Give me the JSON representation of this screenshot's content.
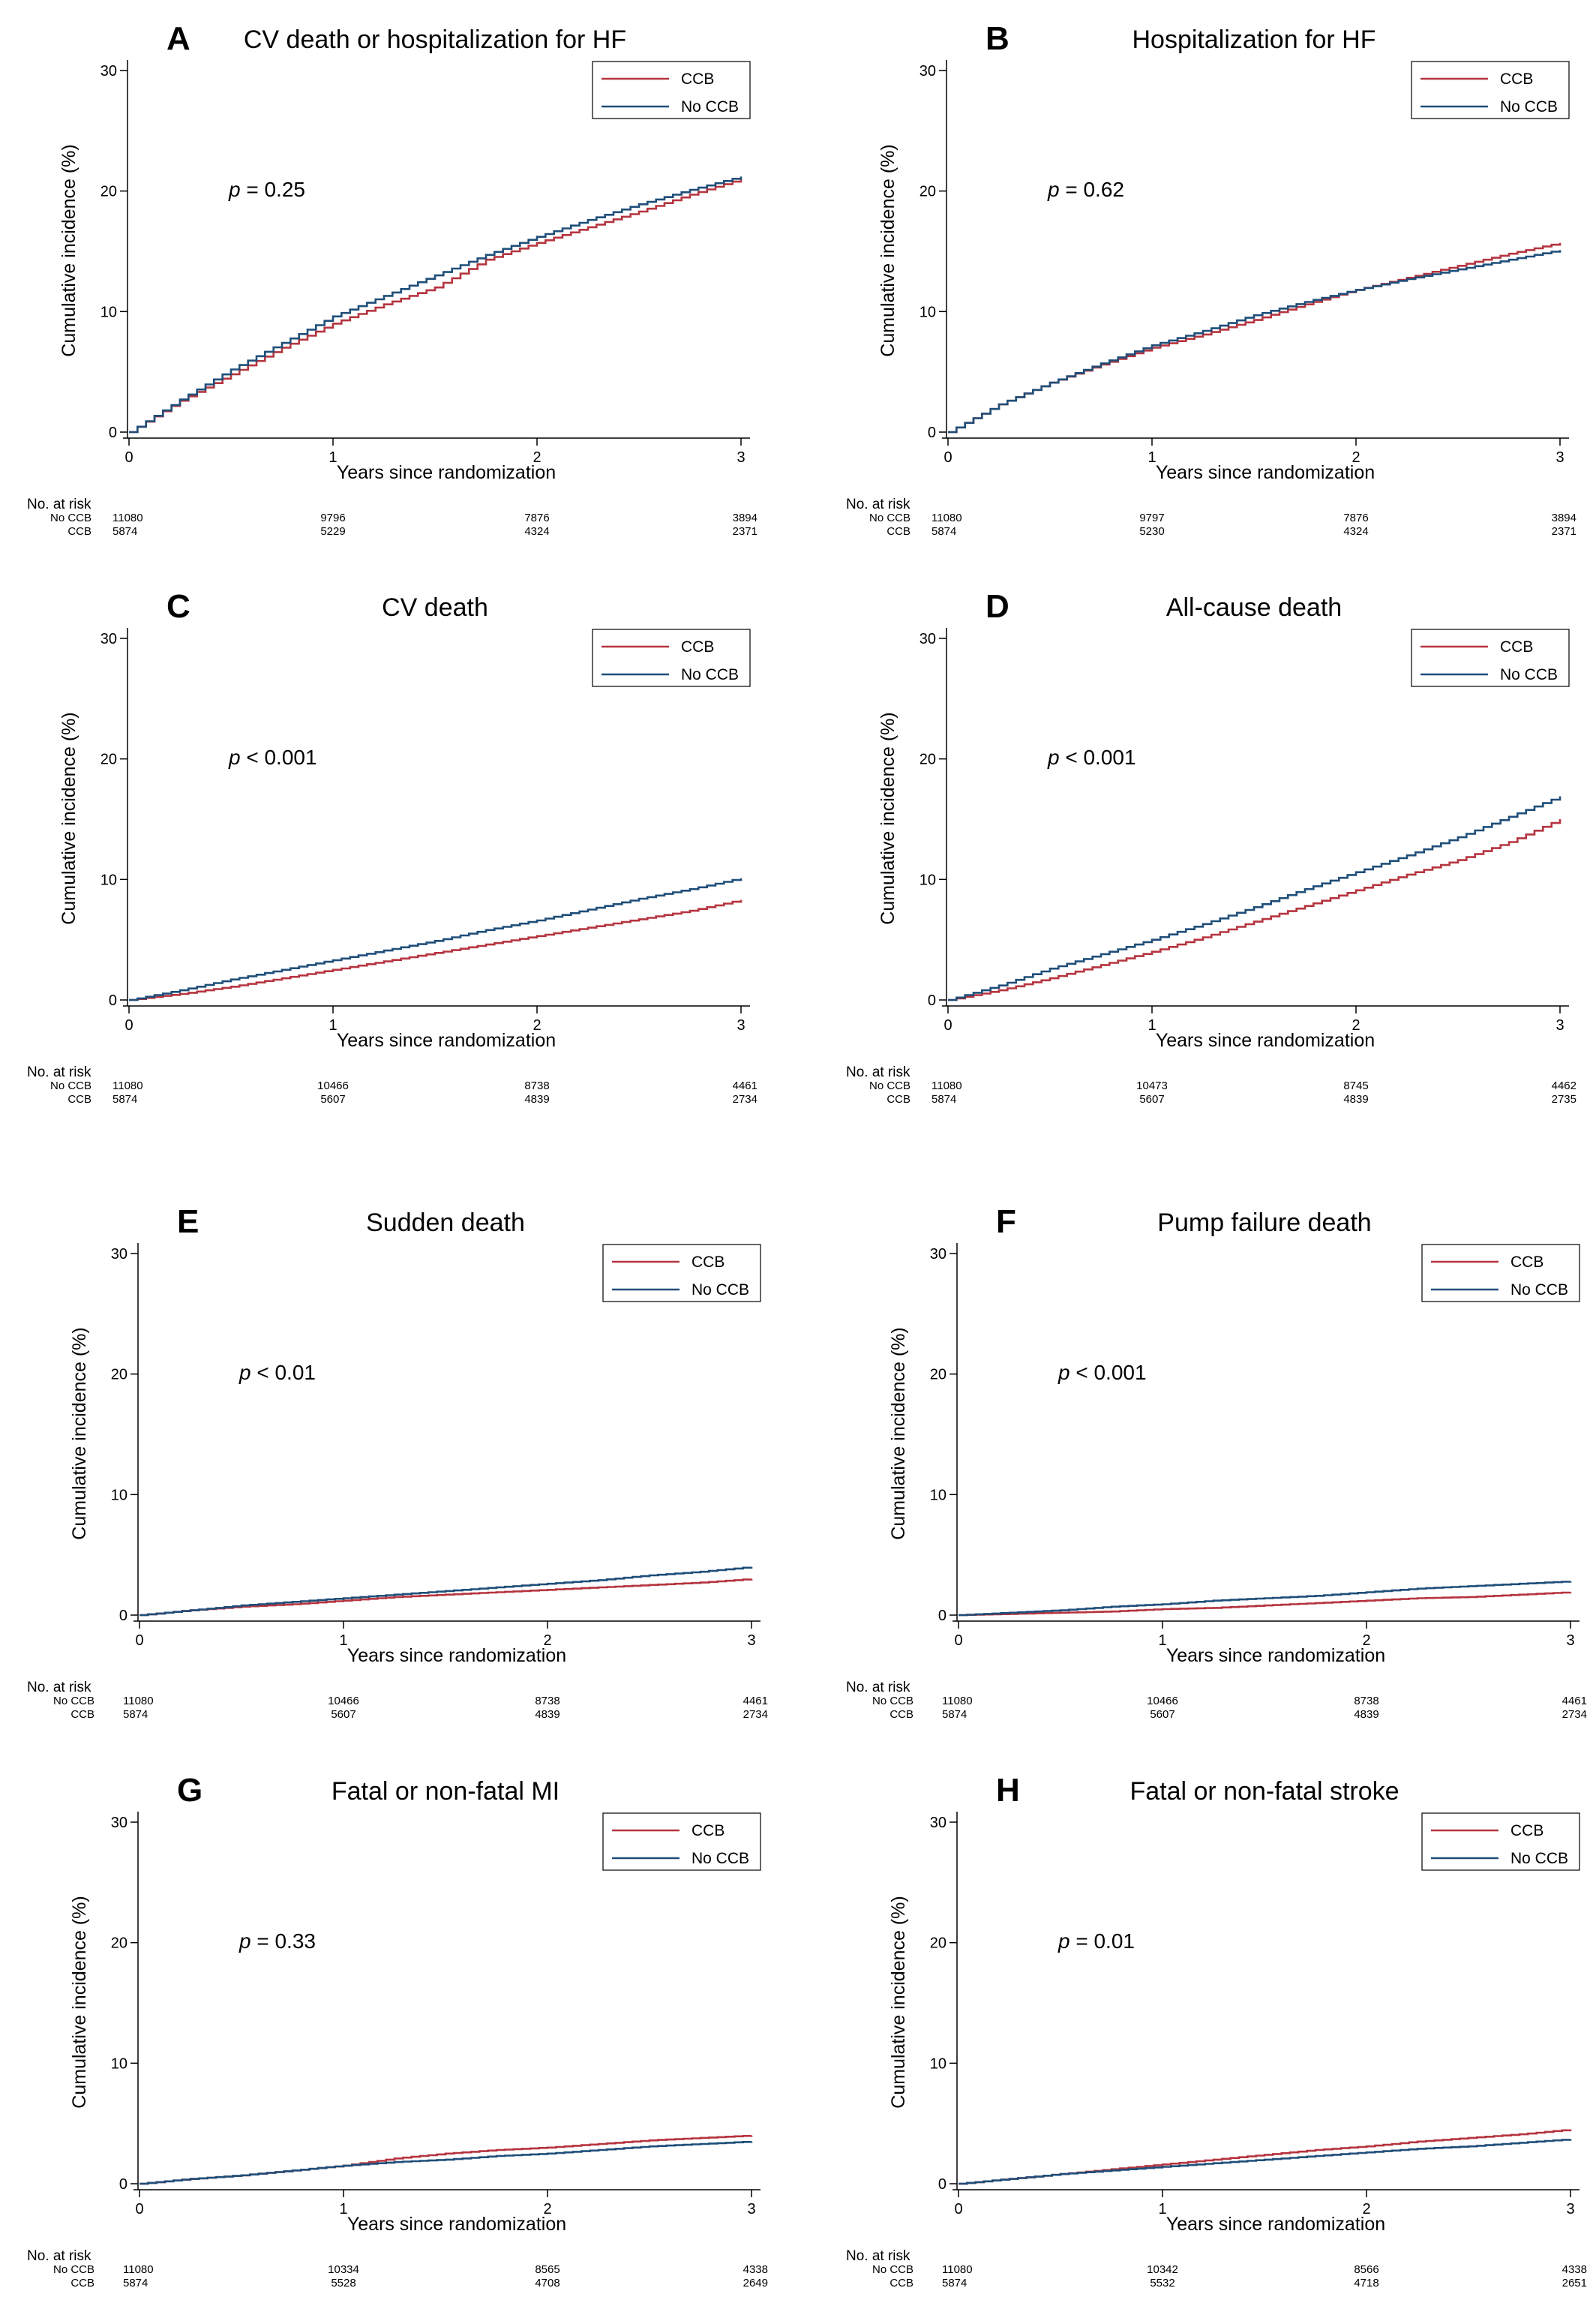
{
  "chart_data": [
    {
      "type": "line",
      "letter": "A",
      "title": "CV death or hospitalization for HF",
      "xlabel": "Years since randomization",
      "ylabel": "Cumulative incidence (%)",
      "xlim": [
        0,
        3
      ],
      "ylim": [
        0,
        30
      ],
      "xticks": [
        0,
        1,
        2,
        3
      ],
      "yticks": [
        0,
        10,
        20,
        30
      ],
      "legend_position": "top-right",
      "pvalue": {
        "label": "p",
        "text": " = 0.25"
      },
      "series": [
        {
          "name": "CCB",
          "color": "#b5343f",
          "x": [
            0,
            0.25,
            0.5,
            0.75,
            1.0,
            1.25,
            1.5,
            1.75,
            2.0,
            2.25,
            2.5,
            2.75,
            3.0
          ],
          "values": [
            0,
            2.6,
            4.8,
            7.0,
            9.0,
            10.6,
            12.0,
            14.3,
            15.7,
            17.0,
            18.3,
            19.7,
            21.0
          ]
        },
        {
          "name": "No CCB",
          "color": "#1f4e79",
          "x": [
            0,
            0.25,
            0.5,
            0.75,
            1.0,
            1.25,
            1.5,
            1.75,
            2.0,
            2.25,
            2.5,
            2.75,
            3.0
          ],
          "values": [
            0,
            2.7,
            5.2,
            7.4,
            9.6,
            11.3,
            13.0,
            14.7,
            16.2,
            17.6,
            18.9,
            20.1,
            21.2
          ]
        }
      ],
      "at_risk": {
        "header": "No. at risk",
        "x": [
          0,
          1,
          2,
          3
        ],
        "rows": [
          {
            "label": "No CCB",
            "values": [
              "11080",
              "9796",
              "7876",
              "3894"
            ]
          },
          {
            "label": "CCB",
            "values": [
              "5874",
              "5229",
              "4324",
              "2371"
            ]
          }
        ]
      }
    },
    {
      "type": "line",
      "letter": "B",
      "title": "Hospitalization for HF",
      "xlabel": "Years since randomization",
      "ylabel": "Cumulative incidence (%)",
      "xlim": [
        0,
        3
      ],
      "ylim": [
        0,
        30
      ],
      "xticks": [
        0,
        1,
        2,
        3
      ],
      "yticks": [
        0,
        10,
        20,
        30
      ],
      "legend_position": "top-right",
      "pvalue": {
        "label": "p",
        "text": " = 0.62"
      },
      "series": [
        {
          "name": "CCB",
          "color": "#b5343f",
          "x": [
            0,
            0.25,
            0.5,
            0.75,
            1.0,
            1.25,
            1.5,
            1.75,
            2.0,
            2.25,
            2.5,
            2.75,
            3.0
          ],
          "values": [
            0,
            2.3,
            4.1,
            5.6,
            7.0,
            8.1,
            9.3,
            10.6,
            11.8,
            12.8,
            13.8,
            14.8,
            15.7
          ]
        },
        {
          "name": "No CCB",
          "color": "#1f4e79",
          "x": [
            0,
            0.25,
            0.5,
            0.75,
            1.0,
            1.25,
            1.5,
            1.75,
            2.0,
            2.25,
            2.5,
            2.75,
            3.0
          ],
          "values": [
            0,
            2.3,
            4.1,
            5.7,
            7.2,
            8.4,
            9.7,
            10.8,
            11.8,
            12.7,
            13.5,
            14.3,
            15.1
          ]
        }
      ],
      "at_risk": {
        "header": "No. at risk",
        "x": [
          0,
          1,
          2,
          3
        ],
        "rows": [
          {
            "label": "No CCB",
            "values": [
              "11080",
              "9797",
              "7876",
              "3894"
            ]
          },
          {
            "label": "CCB",
            "values": [
              "5874",
              "5230",
              "4324",
              "2371"
            ]
          }
        ]
      }
    },
    {
      "type": "line",
      "letter": "C",
      "title": "CV death",
      "xlabel": "Years since randomization",
      "ylabel": "Cumulative incidence (%)",
      "xlim": [
        0,
        3
      ],
      "ylim": [
        0,
        30
      ],
      "xticks": [
        0,
        1,
        2,
        3
      ],
      "yticks": [
        0,
        10,
        20,
        30
      ],
      "legend_position": "top-right",
      "pvalue": {
        "label": "p",
        "text": " < 0.001"
      },
      "series": [
        {
          "name": "CCB",
          "color": "#b5343f",
          "x": [
            0,
            0.25,
            0.5,
            0.75,
            1.0,
            1.25,
            1.5,
            1.75,
            2.0,
            2.25,
            2.5,
            2.75,
            3.0
          ],
          "values": [
            0,
            0.5,
            1.1,
            1.8,
            2.5,
            3.2,
            3.9,
            4.6,
            5.3,
            6.0,
            6.7,
            7.4,
            8.3
          ]
        },
        {
          "name": "No CCB",
          "color": "#1f4e79",
          "x": [
            0,
            0.25,
            0.5,
            0.75,
            1.0,
            1.25,
            1.5,
            1.75,
            2.0,
            2.25,
            2.5,
            2.75,
            3.0
          ],
          "values": [
            0,
            0.8,
            1.7,
            2.5,
            3.3,
            4.1,
            4.9,
            5.8,
            6.6,
            7.5,
            8.4,
            9.2,
            10.1
          ]
        }
      ],
      "at_risk": {
        "header": "No. at risk",
        "x": [
          0,
          1,
          2,
          3
        ],
        "rows": [
          {
            "label": "No CCB",
            "values": [
              "11080",
              "10466",
              "8738",
              "4461"
            ]
          },
          {
            "label": "CCB",
            "values": [
              "5874",
              "5607",
              "4839",
              "2734"
            ]
          }
        ]
      }
    },
    {
      "type": "line",
      "letter": "D",
      "title": "All-cause death",
      "xlabel": "Years since randomization",
      "ylabel": "Cumulative incidence (%)",
      "xlim": [
        0,
        3
      ],
      "ylim": [
        0,
        30
      ],
      "xticks": [
        0,
        1,
        2,
        3
      ],
      "yticks": [
        0,
        10,
        20,
        30
      ],
      "legend_position": "top-right",
      "pvalue": {
        "label": "p",
        "text": " < 0.001"
      },
      "series": [
        {
          "name": "CCB",
          "color": "#b5343f",
          "x": [
            0,
            0.25,
            0.5,
            0.75,
            1.0,
            1.25,
            1.5,
            1.75,
            2.0,
            2.25,
            2.5,
            2.75,
            3.0
          ],
          "values": [
            0,
            0.8,
            1.8,
            2.9,
            4.0,
            5.2,
            6.5,
            7.8,
            9.1,
            10.4,
            11.6,
            13.1,
            15.0
          ]
        },
        {
          "name": "No CCB",
          "color": "#1f4e79",
          "x": [
            0,
            0.25,
            0.5,
            0.75,
            1.0,
            1.25,
            1.5,
            1.75,
            2.0,
            2.25,
            2.5,
            2.75,
            3.0
          ],
          "values": [
            0,
            1.2,
            2.6,
            3.8,
            5.0,
            6.3,
            7.7,
            9.2,
            10.6,
            12.0,
            13.5,
            15.2,
            16.9
          ]
        }
      ],
      "at_risk": {
        "header": "No. at risk",
        "x": [
          0,
          1,
          2,
          3
        ],
        "rows": [
          {
            "label": "No CCB",
            "values": [
              "11080",
              "10473",
              "8745",
              "4462"
            ]
          },
          {
            "label": "CCB",
            "values": [
              "5874",
              "5607",
              "4839",
              "2735"
            ]
          }
        ]
      }
    },
    {
      "type": "line",
      "letter": "E",
      "title": "Sudden death",
      "xlabel": "Years since randomization",
      "ylabel": "Cumulative incidence (%)",
      "xlim": [
        0,
        3
      ],
      "ylim": [
        0,
        30
      ],
      "xticks": [
        0,
        1,
        2,
        3
      ],
      "yticks": [
        0,
        10,
        20,
        30
      ],
      "legend_position": "top-right",
      "pvalue": {
        "label": "p",
        "text": " < 0.01"
      },
      "series": [
        {
          "name": "CCB",
          "color": "#b5343f",
          "x": [
            0,
            0.25,
            0.5,
            0.75,
            1.0,
            1.25,
            1.5,
            1.75,
            2.0,
            2.25,
            2.5,
            2.75,
            3.0
          ],
          "values": [
            0,
            0.4,
            0.7,
            0.9,
            1.2,
            1.5,
            1.7,
            1.9,
            2.1,
            2.3,
            2.5,
            2.7,
            3.0
          ]
        },
        {
          "name": "No CCB",
          "color": "#1f4e79",
          "x": [
            0,
            0.25,
            0.5,
            0.75,
            1.0,
            1.25,
            1.5,
            1.75,
            2.0,
            2.25,
            2.5,
            2.75,
            3.0
          ],
          "values": [
            0,
            0.4,
            0.8,
            1.1,
            1.4,
            1.7,
            2.0,
            2.3,
            2.6,
            2.9,
            3.3,
            3.6,
            4.0
          ]
        }
      ],
      "at_risk": {
        "header": "No. at risk",
        "x": [
          0,
          1,
          2,
          3
        ],
        "rows": [
          {
            "label": "No CCB",
            "values": [
              "11080",
              "10466",
              "8738",
              "4461"
            ]
          },
          {
            "label": "CCB",
            "values": [
              "5874",
              "5607",
              "4839",
              "2734"
            ]
          }
        ]
      }
    },
    {
      "type": "line",
      "letter": "F",
      "title": "Pump failure death",
      "xlabel": "Years since randomization",
      "ylabel": "Cumulative incidence (%)",
      "xlim": [
        0,
        3
      ],
      "ylim": [
        0,
        30
      ],
      "xticks": [
        0,
        1,
        2,
        3
      ],
      "yticks": [
        0,
        10,
        20,
        30
      ],
      "legend_position": "top-right",
      "pvalue": {
        "label": "p",
        "text": " < 0.001"
      },
      "series": [
        {
          "name": "CCB",
          "color": "#b5343f",
          "x": [
            0,
            0.25,
            0.5,
            0.75,
            1.0,
            1.25,
            1.5,
            1.75,
            2.0,
            2.25,
            2.5,
            2.75,
            3.0
          ],
          "values": [
            0,
            0.1,
            0.2,
            0.3,
            0.5,
            0.6,
            0.8,
            1.0,
            1.2,
            1.4,
            1.5,
            1.7,
            1.9
          ]
        },
        {
          "name": "No CCB",
          "color": "#1f4e79",
          "x": [
            0,
            0.25,
            0.5,
            0.75,
            1.0,
            1.25,
            1.5,
            1.75,
            2.0,
            2.25,
            2.5,
            2.75,
            3.0
          ],
          "values": [
            0,
            0.2,
            0.4,
            0.7,
            0.9,
            1.2,
            1.4,
            1.6,
            1.9,
            2.2,
            2.4,
            2.6,
            2.8
          ]
        }
      ],
      "at_risk": {
        "header": "No. at risk",
        "x": [
          0,
          1,
          2,
          3
        ],
        "rows": [
          {
            "label": "No CCB",
            "values": [
              "11080",
              "10466",
              "8738",
              "4461"
            ]
          },
          {
            "label": "CCB",
            "values": [
              "5874",
              "5607",
              "4839",
              "2734"
            ]
          }
        ]
      }
    },
    {
      "type": "line",
      "letter": "G",
      "title": "Fatal or non-fatal MI",
      "xlabel": "Years since randomization",
      "ylabel": "Cumulative incidence (%)",
      "xlim": [
        0,
        3
      ],
      "ylim": [
        0,
        30
      ],
      "xticks": [
        0,
        1,
        2,
        3
      ],
      "yticks": [
        0,
        10,
        20,
        30
      ],
      "legend_position": "top-right",
      "pvalue": {
        "label": "p",
        "text": " = 0.33"
      },
      "series": [
        {
          "name": "CCB",
          "color": "#b5343f",
          "x": [
            0,
            0.25,
            0.5,
            0.75,
            1.0,
            1.25,
            1.5,
            1.75,
            2.0,
            2.25,
            2.5,
            2.75,
            3.0
          ],
          "values": [
            0,
            0.4,
            0.7,
            1.1,
            1.5,
            2.1,
            2.5,
            2.8,
            3.0,
            3.3,
            3.6,
            3.8,
            4.0
          ]
        },
        {
          "name": "No CCB",
          "color": "#1f4e79",
          "x": [
            0,
            0.25,
            0.5,
            0.75,
            1.0,
            1.25,
            1.5,
            1.75,
            2.0,
            2.25,
            2.5,
            2.75,
            3.0
          ],
          "values": [
            0,
            0.4,
            0.7,
            1.1,
            1.5,
            1.8,
            2.0,
            2.3,
            2.5,
            2.8,
            3.1,
            3.3,
            3.5
          ]
        }
      ],
      "at_risk": {
        "header": "No. at risk",
        "x": [
          0,
          1,
          2,
          3
        ],
        "rows": [
          {
            "label": "No CCB",
            "values": [
              "11080",
              "10334",
              "8565",
              "4338"
            ]
          },
          {
            "label": "CCB",
            "values": [
              "5874",
              "5528",
              "4708",
              "2649"
            ]
          }
        ]
      }
    },
    {
      "type": "line",
      "letter": "H",
      "title": "Fatal or non-fatal stroke",
      "xlabel": "Years since randomization",
      "ylabel": "Cumulative incidence (%)",
      "xlim": [
        0,
        3
      ],
      "ylim": [
        0,
        30
      ],
      "xticks": [
        0,
        1,
        2,
        3
      ],
      "yticks": [
        0,
        10,
        20,
        30
      ],
      "legend_position": "top-right",
      "pvalue": {
        "label": "p",
        "text": " = 0.01"
      },
      "series": [
        {
          "name": "CCB",
          "color": "#b5343f",
          "x": [
            0,
            0.25,
            0.5,
            0.75,
            1.0,
            1.25,
            1.5,
            1.75,
            2.0,
            2.25,
            2.5,
            2.75,
            3.0
          ],
          "values": [
            0,
            0.4,
            0.8,
            1.2,
            1.6,
            2.0,
            2.4,
            2.8,
            3.1,
            3.5,
            3.8,
            4.1,
            4.5
          ]
        },
        {
          "name": "No CCB",
          "color": "#1f4e79",
          "x": [
            0,
            0.25,
            0.5,
            0.75,
            1.0,
            1.25,
            1.5,
            1.75,
            2.0,
            2.25,
            2.5,
            2.75,
            3.0
          ],
          "values": [
            0,
            0.4,
            0.8,
            1.1,
            1.4,
            1.7,
            2.0,
            2.3,
            2.6,
            2.9,
            3.1,
            3.4,
            3.7
          ]
        }
      ],
      "at_risk": {
        "header": "No. at risk",
        "x": [
          0,
          1,
          2,
          3
        ],
        "rows": [
          {
            "label": "No CCB",
            "values": [
              "11080",
              "10342",
              "8566",
              "4338"
            ]
          },
          {
            "label": "CCB",
            "values": [
              "5874",
              "5532",
              "4718",
              "2651"
            ]
          }
        ]
      }
    }
  ]
}
